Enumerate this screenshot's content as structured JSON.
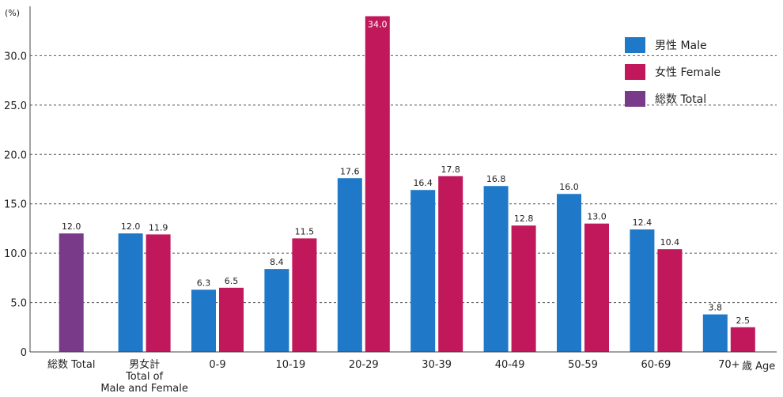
{
  "chart_data": {
    "type": "bar",
    "unit_label": "(%)",
    "x_unit_label": "歳 Age",
    "ylim": [
      0,
      35
    ],
    "y_ticks": [
      "0",
      "5.0",
      "10.0",
      "15.0",
      "20.0",
      "25.0",
      "30.0"
    ],
    "y_tick_values": [
      0,
      5,
      10,
      15,
      20,
      25,
      30
    ],
    "grid": true,
    "legend_position": "top-right",
    "colors": {
      "male": "#1f78c8",
      "female": "#c0185a",
      "total": "#7a3a8a"
    },
    "legend": [
      {
        "key": "male",
        "label": "男性 Male"
      },
      {
        "key": "female",
        "label": "女性 Female"
      },
      {
        "key": "total",
        "label": "総数 Total"
      }
    ],
    "categories": [
      {
        "label": [
          "総数 Total"
        ],
        "total": 12.0
      },
      {
        "label": [
          "男女計",
          "Total of",
          "Male and Female"
        ],
        "male": 12.0,
        "female": 11.9
      },
      {
        "label": [
          "0-9"
        ],
        "male": 6.3,
        "female": 6.5
      },
      {
        "label": [
          "10-19"
        ],
        "male": 8.4,
        "female": 11.5
      },
      {
        "label": [
          "20-29"
        ],
        "male": 17.6,
        "female": 34.0
      },
      {
        "label": [
          "30-39"
        ],
        "male": 16.4,
        "female": 17.8
      },
      {
        "label": [
          "40-49"
        ],
        "male": 16.8,
        "female": 12.8
      },
      {
        "label": [
          "50-59"
        ],
        "male": 16.0,
        "female": 13.0
      },
      {
        "label": [
          "60-69"
        ],
        "male": 12.4,
        "female": 10.4
      },
      {
        "label": [
          "70+"
        ],
        "male": 3.8,
        "female": 2.5
      }
    ]
  }
}
